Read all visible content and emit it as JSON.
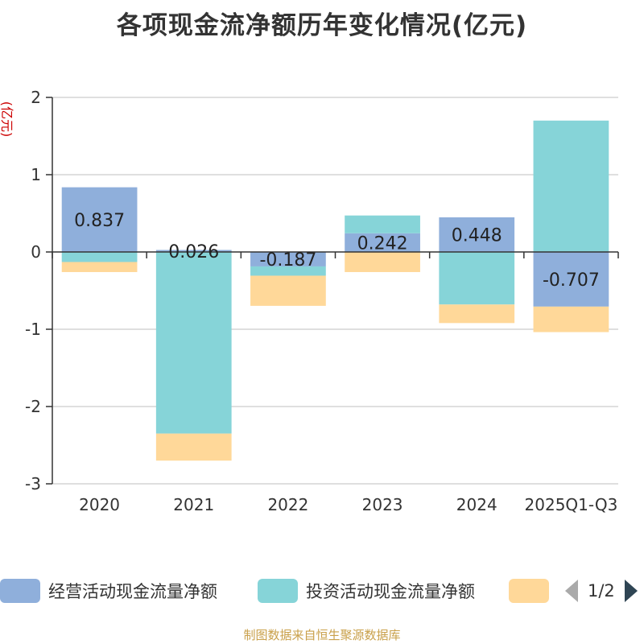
{
  "chart_data": {
    "type": "bar",
    "stacked": true,
    "title": "各项现金流净额历年变化情况(亿元)",
    "ylabel": "(亿元)",
    "xlabel": "",
    "ylim": [
      -3,
      2
    ],
    "yticks": [
      2,
      1,
      0,
      -1,
      -2,
      -3
    ],
    "categories": [
      "2020",
      "2021",
      "2022",
      "2023",
      "2024",
      "2025Q1-Q3"
    ],
    "series": [
      {
        "name": "经营活动现金流量净额",
        "color": "#8fafdb",
        "values": [
          0.837,
          0.026,
          -0.187,
          0.242,
          0.448,
          -0.707
        ]
      },
      {
        "name": "投资活动现金流量净额",
        "color": "#86d4d8",
        "values": [
          -0.13,
          -2.35,
          -0.12,
          0.23,
          -0.68,
          1.7
        ]
      },
      {
        "name": "",
        "color": "#ffd899",
        "values": [
          -0.13,
          -0.35,
          -0.39,
          -0.26,
          -0.24,
          -0.33
        ]
      }
    ],
    "data_labels": [
      "0.837",
      "0.026",
      "-0.187",
      "0.242",
      "0.448",
      "-0.707"
    ]
  },
  "legend": {
    "items": [
      {
        "label": "经营活动现金流量净额",
        "color": "#8fafdb"
      },
      {
        "label": "投资活动现金流量净额",
        "color": "#86d4d8"
      },
      {
        "label": "",
        "color": "#ffd899"
      }
    ],
    "page_text": "1/2"
  },
  "source_note": "制图数据来自恒生聚源数据库"
}
